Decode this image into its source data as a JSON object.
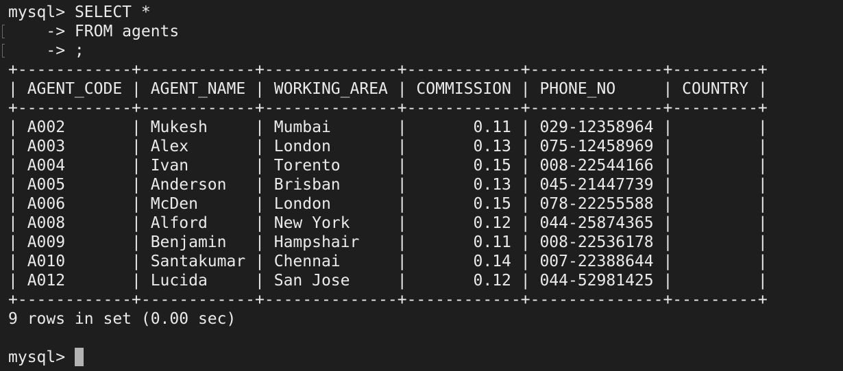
{
  "terminal": {
    "prompt": "mysql> ",
    "query_lines": [
      "SELECT *",
      "    -> FROM agents",
      "    -> ;"
    ],
    "border_line": "+------------+------------+--------------+------------+--------------+---------+",
    "header_line": "| AGENT_CODE | AGENT_NAME | WORKING_AREA | COMMISSION | PHONE_NO     | COUNTRY |",
    "rows": [
      "| A002       | Mukesh     | Mumbai       |       0.11 | 029-12358964 |         |",
      "| A003       | Alex       | London       |       0.13 | 075-12458969 |         |",
      "| A004       | Ivan       | Torento      |       0.15 | 008-22544166 |         |",
      "| A005       | Anderson   | Brisban      |       0.13 | 045-21447739 |         |",
      "| A006       | McDen      | London       |       0.15 | 078-22255588 |         |",
      "| A008       | Alford     | New York     |       0.12 | 044-25874365 |         |",
      "| A009       | Benjamin   | Hampshair    |       0.11 | 008-22536178 |         |",
      "| A010       | Santakumar | Chennai      |       0.14 | 007-22388644 |         |",
      "| A012       | Lucida     | San Jose     |       0.12 | 044-52981425 |         |"
    ],
    "result_summary": "9 rows in set (0.00 sec)",
    "final_prompt": "mysql> "
  },
  "colors": {
    "background": "#1e1e1e",
    "foreground": "#eaeaea",
    "cursor": "#b3b3b3"
  }
}
